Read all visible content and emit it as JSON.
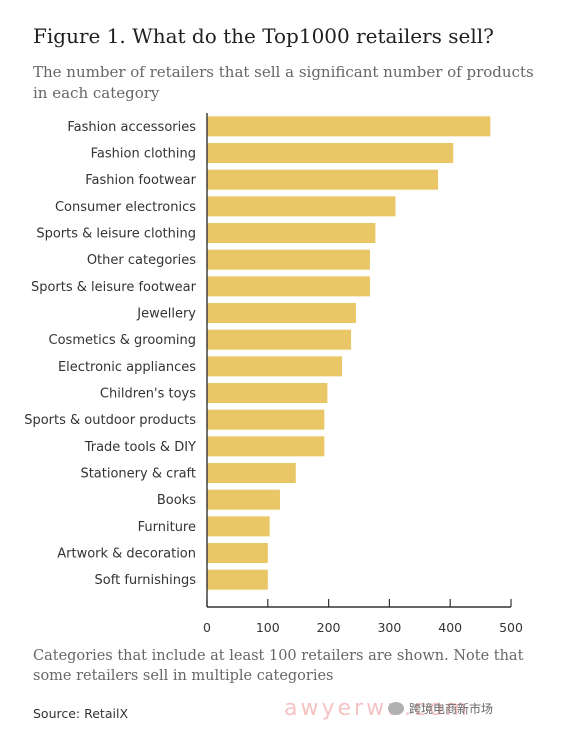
{
  "title": "Figure 1. What do the Top1000 retailers sell?",
  "subtitle": "The number of retailers that sell a significant number of products in each category",
  "footnote": "Categories that include at least 100 retailers are shown. Note that some retailers sell in multiple categories",
  "source": "Source: RetailX",
  "watermark": {
    "brand": "awyerwu.com",
    "badge_text": "跨境电商新市场",
    "badge_icon": "wechat-icon"
  },
  "colors": {
    "bar": "#E9C766",
    "axis": "#333333",
    "text": "#333333"
  },
  "chart_data": {
    "type": "bar",
    "orientation": "horizontal",
    "categories": [
      "Fashion accessories",
      "Fashion clothing",
      "Fashion footwear",
      "Consumer electronics",
      "Sports & leisure clothing",
      "Other categories",
      "Sports & leisure footwear",
      "Jewellery",
      "Cosmetics & grooming",
      "Electronic appliances",
      "Children's toys",
      "Sports & outdoor products",
      "Trade tools & DIY",
      "Stationery & craft",
      "Books",
      "Furniture",
      "Artwork & decoration",
      "Soft furnishings"
    ],
    "values": [
      466,
      405,
      380,
      310,
      277,
      268,
      268,
      245,
      237,
      222,
      198,
      193,
      193,
      146,
      120,
      103,
      100,
      100
    ],
    "xlim": [
      0,
      500
    ],
    "xticks": [
      0,
      100,
      200,
      300,
      400,
      500
    ],
    "grid": false,
    "legend": "none"
  }
}
